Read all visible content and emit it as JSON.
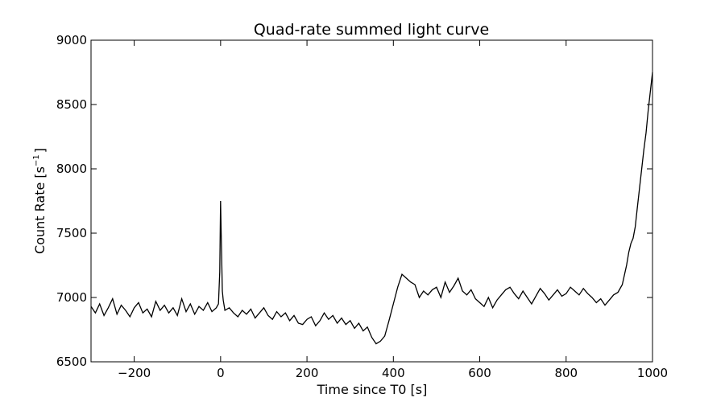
{
  "chart_data": {
    "type": "line",
    "title": "Quad-rate summed light curve",
    "xlabel": "Time since T0 [s]",
    "ylabel_main": "Count Rate [s",
    "ylabel_sup": "−1",
    "ylabel_end": "]",
    "xlim": [
      -300,
      1000
    ],
    "ylim": [
      6500,
      9000
    ],
    "x_ticks": [
      -200,
      0,
      200,
      400,
      600,
      800,
      1000
    ],
    "x_tick_labels": [
      "−200",
      "0",
      "200",
      "400",
      "600",
      "800",
      "1000"
    ],
    "y_ticks": [
      6500,
      7000,
      7500,
      8000,
      8500,
      9000
    ],
    "y_tick_labels": [
      "6500",
      "7000",
      "7500",
      "8000",
      "8500",
      "9000"
    ],
    "grid": false,
    "line_color": "#000000",
    "series": [
      {
        "x": [
          -300,
          -290,
          -280,
          -270,
          -260,
          -250,
          -240,
          -230,
          -220,
          -210,
          -200,
          -190,
          -180,
          -170,
          -160,
          -150,
          -140,
          -130,
          -120,
          -110,
          -100,
          -90,
          -80,
          -70,
          -60,
          -50,
          -40,
          -30,
          -20,
          -10,
          -5,
          -2,
          0,
          2,
          4,
          6,
          10,
          20,
          30,
          40,
          50,
          60,
          70,
          80,
          90,
          100,
          110,
          120,
          130,
          140,
          150,
          160,
          170,
          180,
          190,
          200,
          210,
          220,
          230,
          240,
          250,
          260,
          270,
          280,
          290,
          300,
          310,
          320,
          330,
          340,
          350,
          360,
          370,
          380,
          390,
          400,
          410,
          420,
          430,
          440,
          450,
          460,
          470,
          480,
          490,
          500,
          510,
          520,
          530,
          540,
          550,
          560,
          570,
          580,
          590,
          600,
          610,
          620,
          630,
          640,
          650,
          660,
          670,
          680,
          690,
          700,
          710,
          720,
          730,
          740,
          750,
          760,
          770,
          780,
          790,
          800,
          810,
          820,
          830,
          840,
          850,
          860,
          870,
          880,
          890,
          900,
          910,
          920,
          930,
          940,
          945,
          950,
          955,
          960,
          965,
          970,
          975,
          980,
          985,
          990,
          995,
          1000
        ],
        "y": [
          6930,
          6880,
          6950,
          6860,
          6920,
          6990,
          6870,
          6940,
          6900,
          6850,
          6920,
          6960,
          6880,
          6910,
          6850,
          6970,
          6900,
          6940,
          6880,
          6920,
          6860,
          6990,
          6890,
          6950,
          6870,
          6930,
          6900,
          6960,
          6890,
          6920,
          6950,
          7200,
          7750,
          7400,
          7050,
          6980,
          6900,
          6920,
          6880,
          6850,
          6900,
          6870,
          6910,
          6840,
          6880,
          6920,
          6860,
          6830,
          6890,
          6850,
          6880,
          6820,
          6860,
          6800,
          6790,
          6830,
          6850,
          6780,
          6820,
          6880,
          6830,
          6860,
          6800,
          6840,
          6790,
          6820,
          6760,
          6800,
          6740,
          6770,
          6690,
          6640,
          6660,
          6700,
          6820,
          6950,
          7080,
          7180,
          7150,
          7120,
          7100,
          7000,
          7050,
          7020,
          7060,
          7080,
          7000,
          7120,
          7040,
          7090,
          7150,
          7050,
          7020,
          7060,
          6990,
          6960,
          6930,
          7000,
          6920,
          6980,
          7020,
          7060,
          7080,
          7030,
          6990,
          7050,
          7000,
          6950,
          7010,
          7070,
          7030,
          6980,
          7020,
          7060,
          7010,
          7030,
          7080,
          7050,
          7020,
          7070,
          7030,
          7000,
          6960,
          6990,
          6940,
          6980,
          7020,
          7040,
          7100,
          7250,
          7350,
          7420,
          7460,
          7550,
          7700,
          7850,
          8000,
          8150,
          8280,
          8450,
          8600,
          8750
        ]
      }
    ]
  }
}
